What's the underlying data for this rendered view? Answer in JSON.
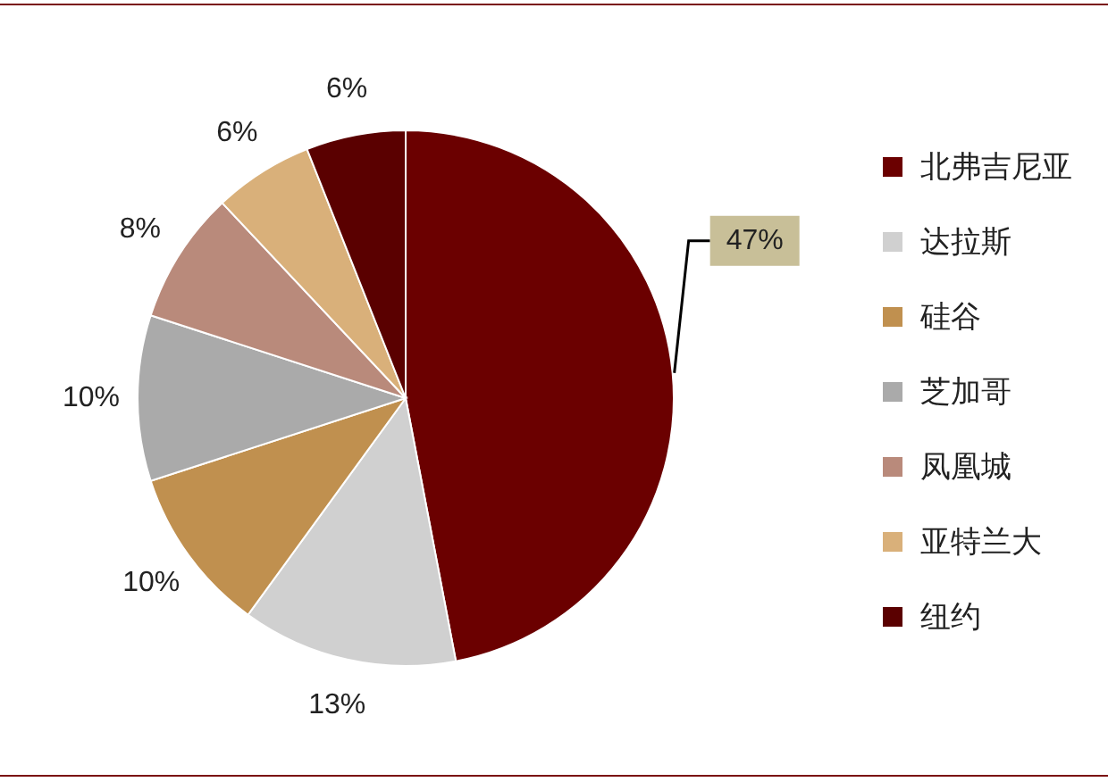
{
  "chart_data": {
    "type": "pie",
    "categories": [
      "北弗吉尼亚",
      "达拉斯",
      "硅谷",
      "芝加哥",
      "凤凰城",
      "亚特兰大",
      "纽约"
    ],
    "values": [
      47,
      13,
      10,
      10,
      8,
      6,
      6
    ],
    "colors": [
      "#6b0000",
      "#d0d0d0",
      "#c0904f",
      "#aaaaaa",
      "#b98a7b",
      "#d9b07a",
      "#5a0000"
    ],
    "value_labels": [
      "47%",
      "13%",
      "10%",
      "10%",
      "8%",
      "6%",
      "6%"
    ],
    "legend": "right"
  }
}
